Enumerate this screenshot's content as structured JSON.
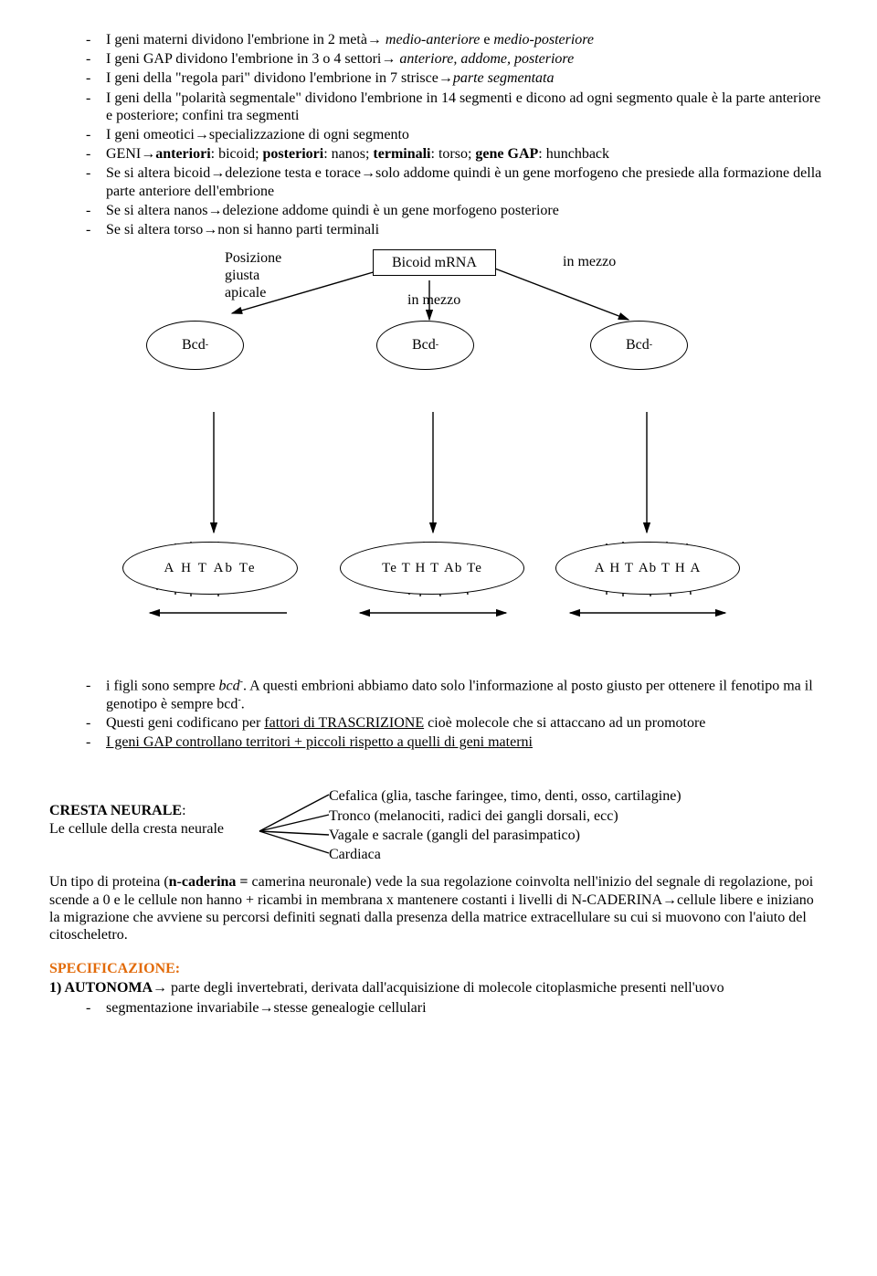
{
  "bullets_top": [
    {
      "pre": "I geni materni dividono l'embrione in 2 metà",
      "arrow": "→",
      "post_it": " medio-anteriore",
      "mid": " e ",
      "post_it2": "medio-posteriore"
    },
    {
      "pre": "I geni GAP dividono l'embrione in 3 o 4 settori",
      "arrow": "→",
      "post_it": " anteriore, addome, posteriore"
    },
    {
      "pre": "I geni della \"regola pari\" dividono l'embrione in 7 strisce",
      "arrow": "→",
      "post_it": "parte segmentata"
    },
    {
      "pre": "I geni della \"polarità segmentale\" dividono l'embrione in 14 segmenti e dicono ad ogni segmento quale è la parte anteriore e posteriore; confini tra segmenti"
    },
    {
      "pre": "I geni omeotici",
      "arrow": "→",
      "post": "specializzazione di ogni segmento"
    },
    {
      "raw": "GENI→<b>anteriori</b>: bicoid; <b>posteriori</b>: nanos; <b>terminali</b>: torso; <b>gene GAP</b>: hunchback"
    },
    {
      "raw": "Se si altera bicoid→delezione testa e torace→solo addome quindi è un gene morfogeno che presiede alla formazione della parte anteriore dell'embrione"
    },
    {
      "raw": "Se si altera nanos→delezione addome quindi è un gene morfogeno posteriore"
    },
    {
      "raw": "Se si altera torso→non si hanno parti terminali"
    }
  ],
  "diagram": {
    "box_label": "Bicoid mRNA",
    "left_label": "Posizione\ngiusta\napicale",
    "mid_label": "in mezzo",
    "right_label": "in mezzo",
    "bcd": "Bcd",
    "bcd_sup": "-",
    "embryo1": [
      "A",
      "H",
      "T",
      "Ab",
      "Te"
    ],
    "embryo2": [
      "Te",
      "T",
      "H",
      "T",
      "Ab",
      "Te"
    ],
    "embryo3": [
      "A",
      "H",
      "T",
      "Ab",
      "T",
      "H",
      "A"
    ]
  },
  "bullets_mid": [
    {
      "raw": "i figli sono sempre <i>bcd</i><span class='sup'>-</span>. A questi embrioni abbiamo dato solo l'informazione al posto giusto per ottenere il fenotipo ma il genotipo è sempre bcd<span class='sup'>-</span>."
    },
    {
      "raw": "Questi geni codificano per <u>fattori di TRASCRIZIONE</u> cioè molecole che si attaccano ad un promotore"
    },
    {
      "raw": "<u>I geni GAP controllano territori + piccoli rispetto a quelli di geni materni</u>"
    }
  ],
  "cresta": {
    "title": "CRESTA NEURALE",
    "sub": "Le cellule della cresta neurale",
    "lines": [
      "Cefalica (glia, tasche faringee, timo, denti, osso, cartilagine)",
      "Tronco (melanociti, radici dei gangli dorsali, ecc)",
      "Vagale e sacrale (gangli del parasimpatico)",
      "Cardiaca"
    ]
  },
  "para1": "Un tipo di proteina (<b>n-caderina = </b>camerina neuronale) vede la sua regolazione coinvolta nell'inizio del segnale di regolazione, poi scende a 0 e le cellule non hanno + ricambi in membrana x mantenere costanti i livelli di N-CADERINA→cellule libere e iniziano la migrazione che avviene su percorsi definiti segnati dalla presenza della matrice extracellulare su cui si muovono con l'aiuto del citoscheletro.",
  "spec": {
    "head": "SPECIFICAZIONE:",
    "line": "<b>1) AUTONOMA</b>→ parte degli invertebrati, derivata dall'acquisizione di molecole citoplasmiche presenti nell'uovo",
    "bullet": "segmentazione invariabile→stesse genealogie cellulari"
  }
}
